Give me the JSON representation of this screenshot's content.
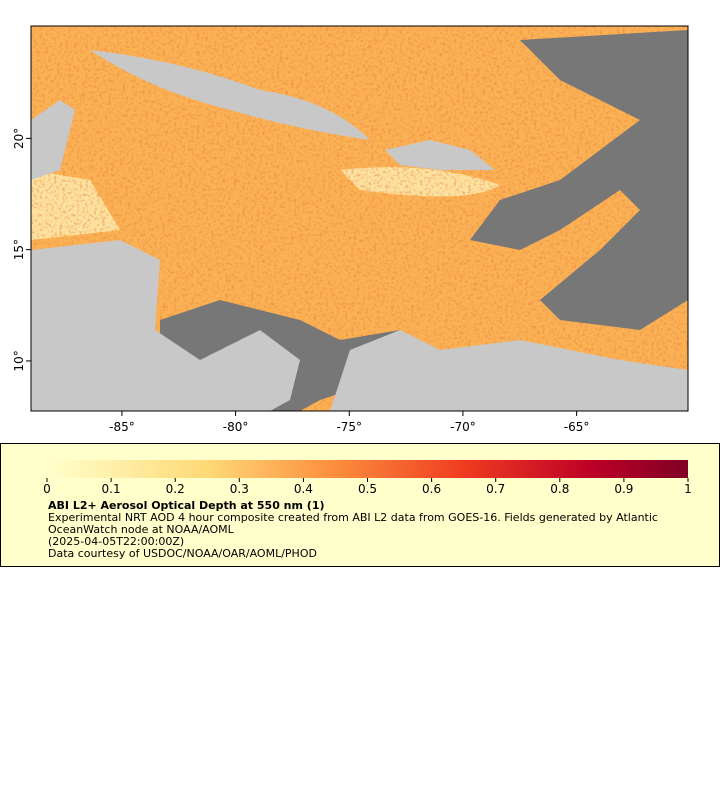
{
  "map": {
    "xlim": [
      -89,
      -60.1
    ],
    "ylim": [
      7.75,
      25.05
    ],
    "xticks": [
      {
        "value": -85,
        "label": "-85°"
      },
      {
        "value": -80,
        "label": "-80°"
      },
      {
        "value": -75,
        "label": "-75°"
      },
      {
        "value": -70,
        "label": "-70°"
      },
      {
        "value": -65,
        "label": "-65°"
      }
    ],
    "yticks": [
      {
        "value": 10,
        "label": "10°"
      },
      {
        "value": 15,
        "label": "15°"
      },
      {
        "value": 20,
        "label": "20°"
      }
    ]
  },
  "colorbar": {
    "lim": [
      0,
      1
    ],
    "ticks": [
      0,
      0.1,
      0.2,
      0.3,
      0.4,
      0.5,
      0.6,
      0.7,
      0.8,
      0.9,
      1
    ]
  },
  "legend": {
    "title": "ABI L2+ Aerosol Optical Depth at 550 nm (1)",
    "description": "Experimental NRT AOD 4 hour composite created from ABI L2 data from GOES-16. Fields generated by Atlantic OceanWatch node at NOAA/AOML",
    "time": "(2025-04-05T22:00:00Z)",
    "credit": "Data courtesy of USDOC/NOAA/OAR/AOML/PHOD"
  }
}
